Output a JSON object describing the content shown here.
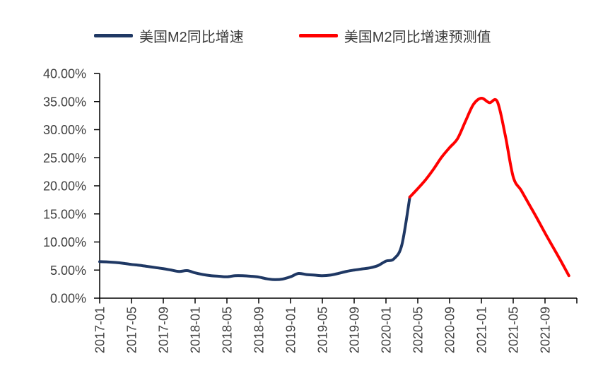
{
  "chart_data": {
    "type": "line",
    "title": "",
    "xlabel": "",
    "ylabel": "",
    "grid": false,
    "legend_position": "top",
    "ylim": [
      0,
      40
    ],
    "y_tick_step": 5,
    "y_tick_labels": [
      "0.00%",
      "5.00%",
      "10.00%",
      "15.00%",
      "20.00%",
      "25.00%",
      "30.00%",
      "35.00%",
      "40.00%"
    ],
    "x_tick_labels": [
      "2017-01",
      "2017-05",
      "2017-09",
      "2018-01",
      "2018-05",
      "2018-09",
      "2019-01",
      "2019-05",
      "2019-09",
      "2020-01",
      "2020-05",
      "2020-09",
      "2021-01",
      "2021-05",
      "2021-09"
    ],
    "x_tick_every_months": 4,
    "x": [
      "2017-01",
      "2017-02",
      "2017-03",
      "2017-04",
      "2017-05",
      "2017-06",
      "2017-07",
      "2017-08",
      "2017-09",
      "2017-10",
      "2017-11",
      "2017-12",
      "2018-01",
      "2018-02",
      "2018-03",
      "2018-04",
      "2018-05",
      "2018-06",
      "2018-07",
      "2018-08",
      "2018-09",
      "2018-10",
      "2018-11",
      "2018-12",
      "2019-01",
      "2019-02",
      "2019-03",
      "2019-04",
      "2019-05",
      "2019-06",
      "2019-07",
      "2019-08",
      "2019-09",
      "2019-10",
      "2019-11",
      "2019-12",
      "2020-01",
      "2020-02",
      "2020-03",
      "2020-04",
      "2020-05",
      "2020-06",
      "2020-07",
      "2020-08",
      "2020-09",
      "2020-10",
      "2020-11",
      "2020-12",
      "2021-01",
      "2021-02",
      "2021-03",
      "2021-04",
      "2021-05",
      "2021-06",
      "2021-07",
      "2021-08",
      "2021-09",
      "2021-10",
      "2021-11",
      "2021-12"
    ],
    "unit": "percent",
    "series": [
      {
        "name": "美国M2同比增速",
        "color": "#1F3864",
        "start_index": 0,
        "values": [
          6.5,
          6.45,
          6.35,
          6.2,
          6.0,
          5.85,
          5.65,
          5.45,
          5.25,
          5.0,
          4.75,
          4.9,
          4.5,
          4.2,
          4.0,
          3.9,
          3.8,
          4.0,
          4.0,
          3.9,
          3.75,
          3.45,
          3.3,
          3.4,
          3.8,
          4.4,
          4.2,
          4.1,
          4.0,
          4.1,
          4.4,
          4.75,
          5.0,
          5.2,
          5.4,
          5.8,
          6.6,
          7.0,
          9.5,
          18.0
        ]
      },
      {
        "name": "美国M2同比增速预测值",
        "color": "#FF0000",
        "start_index": 39,
        "values": [
          18.0,
          19.5,
          21.1,
          23.0,
          25.1,
          26.8,
          28.4,
          31.5,
          34.5,
          35.6,
          34.8,
          35.0,
          29.0,
          21.6,
          19.2,
          16.7,
          14.2,
          11.6,
          9.1,
          6.6,
          4.0
        ]
      }
    ],
    "axis_color": "#000000",
    "label_color": "#404040"
  }
}
